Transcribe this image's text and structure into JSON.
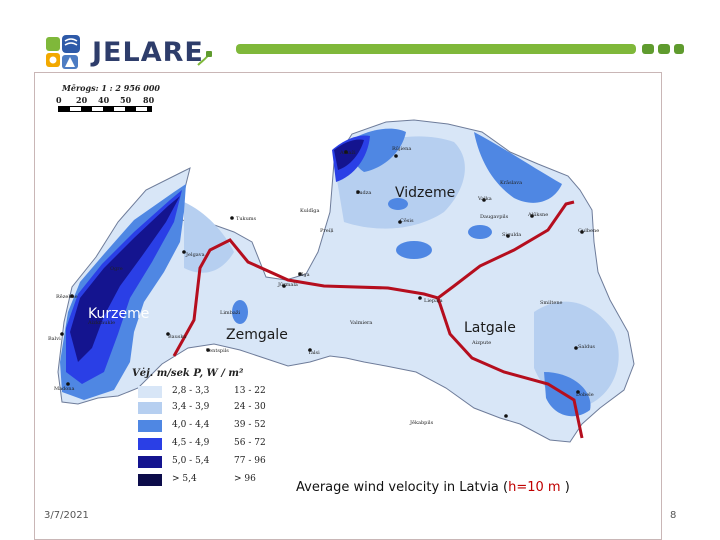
{
  "header": {
    "logo_text": "JELARE",
    "accent_color": "#7fb83a"
  },
  "map": {
    "scale_label": "Mērogs: 1 : 2 956 000",
    "scale_ticks": [
      "0",
      "20",
      "40",
      "50",
      "80"
    ],
    "regions": {
      "vidzeme": "Vidzeme",
      "kurzeme": "Kurzeme",
      "zemgale": "Zemgale",
      "latgale": "Latgale"
    },
    "legend": {
      "title": "Vėj. m/sek      P, W / m²",
      "items": [
        {
          "velocity": "2,8 - 3,3",
          "power": "13 - 22",
          "color": "#d8e6f7"
        },
        {
          "velocity": "3,4 - 3,9",
          "power": "24 - 30",
          "color": "#b6cff0"
        },
        {
          "velocity": "4,0 - 4,4",
          "power": "39 - 52",
          "color": "#4f87e3"
        },
        {
          "velocity": "4,5 - 4,9",
          "power": "56 - 72",
          "color": "#2a3fe6"
        },
        {
          "velocity": "5,0 - 5,4",
          "power": "77 - 96",
          "color": "#14148f"
        },
        {
          "velocity": "> 5,4",
          "power": "> 96",
          "color": "#0c0c4a"
        }
      ]
    },
    "cities": [
      "Ainaži",
      "Rūjiena",
      "Valka",
      "Alūksne",
      "Gulbene",
      "Cēsis",
      "Sigulda",
      "Rīga",
      "Jūrmala",
      "Tukums",
      "Jelgava",
      "Bauska",
      "Ventspils",
      "Talsi",
      "Liepāja",
      "Saldus",
      "Dobele",
      "Jēkabpils",
      "Madona",
      "Balvi",
      "Rēzekne",
      "Ludza",
      "Daugavpils",
      "Krāslava",
      "Preiļi",
      "Kuldīga",
      "Aizpute",
      "Limbaži",
      "Valmiera",
      "Ogre",
      "Aizkraukle",
      "Smiltene"
    ]
  },
  "caption": {
    "prefix": "Average wind velocity in Latvia (",
    "highlight": "h=10 m",
    "suffix": " )"
  },
  "footer": {
    "date": "3/7/2021",
    "page": "8"
  }
}
